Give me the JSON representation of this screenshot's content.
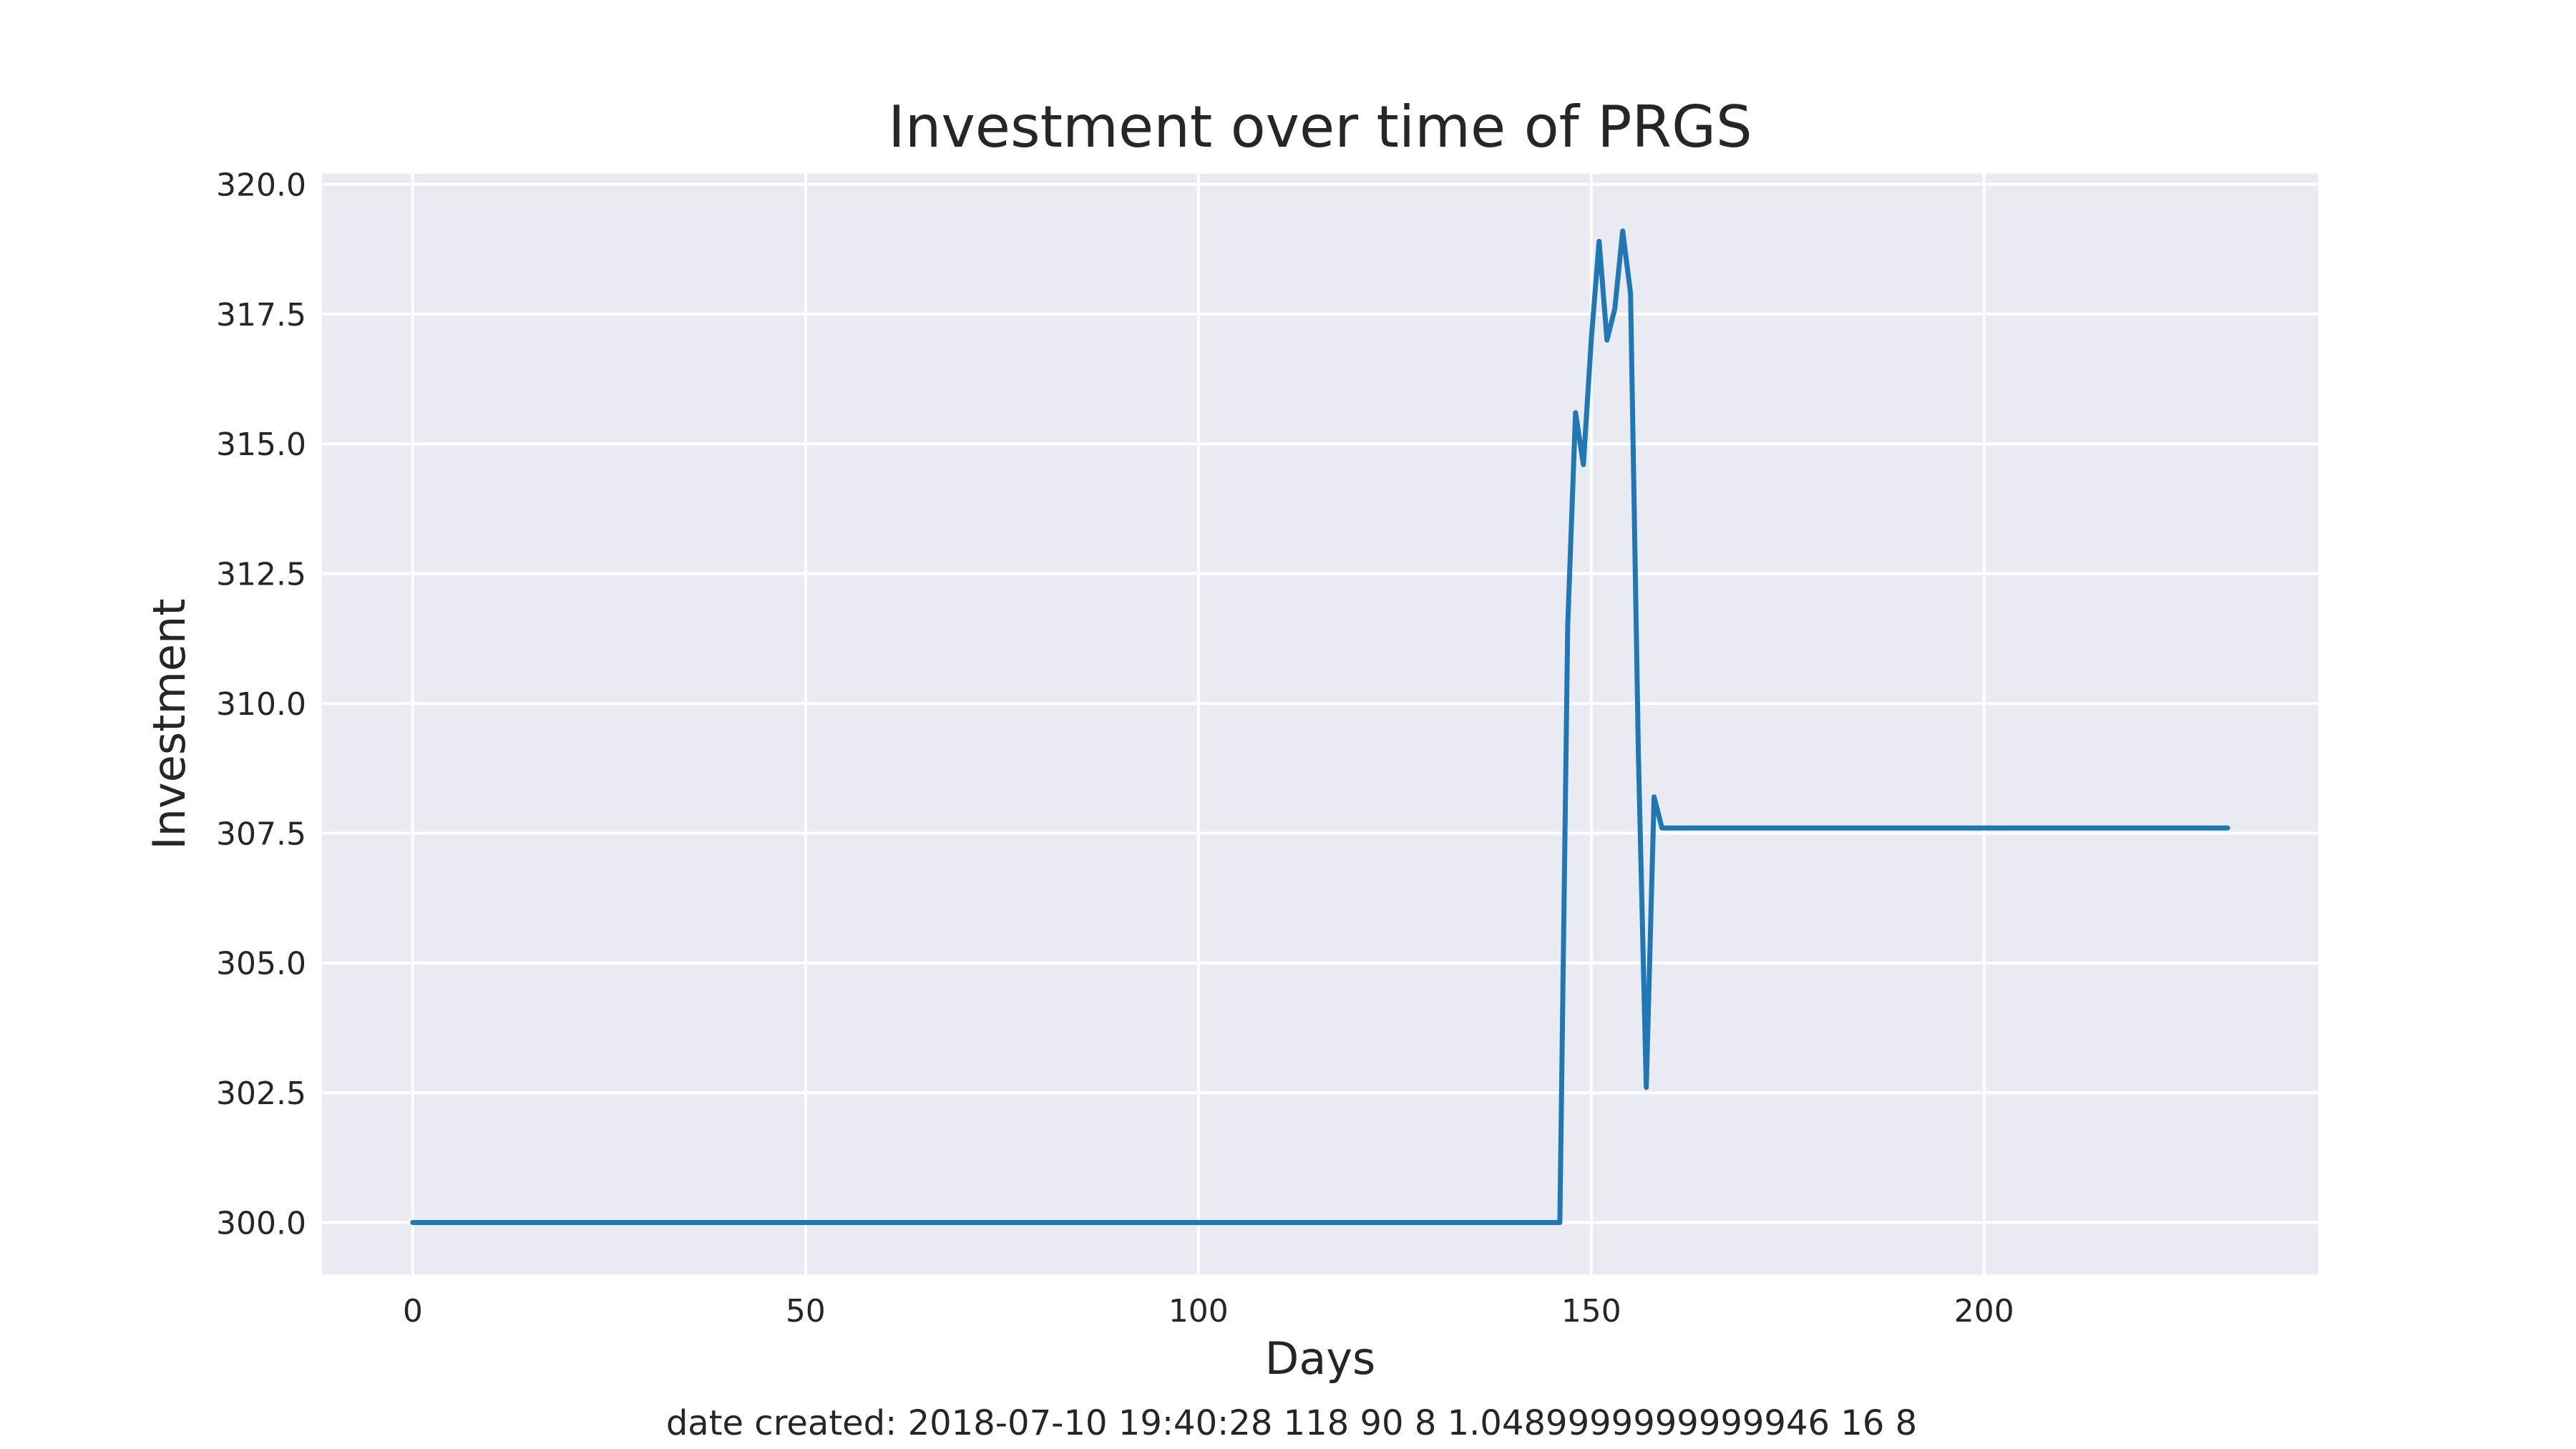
{
  "chart_data": {
    "type": "line",
    "title": "Investment over time of PRGS",
    "xlabel": "Days",
    "ylabel": "Investment",
    "xlim": [
      -11.55,
      242.55
    ],
    "ylim": [
      299.0,
      320.2
    ],
    "xticks": [
      0,
      50,
      100,
      150,
      200
    ],
    "xtick_labels": [
      "0",
      "50",
      "100",
      "150",
      "200"
    ],
    "yticks": [
      300.0,
      302.5,
      305.0,
      307.5,
      310.0,
      312.5,
      315.0,
      317.5,
      320.0
    ],
    "ytick_labels": [
      "300.0",
      "302.5",
      "305.0",
      "307.5",
      "310.0",
      "312.5",
      "315.0",
      "317.5",
      "320.0"
    ],
    "grid": true,
    "background": "#eaeaf2",
    "series": [
      {
        "color": "#1f77b4",
        "x": [
          0,
          146,
          147,
          148,
          149,
          150,
          151,
          152,
          153,
          154,
          155,
          156,
          157,
          158,
          159,
          160,
          231
        ],
        "y": [
          300.0,
          300.0,
          311.5,
          315.6,
          314.6,
          317.0,
          318.9,
          317.0,
          317.6,
          319.1,
          317.9,
          309.0,
          302.6,
          308.2,
          307.6,
          307.6,
          307.6
        ]
      }
    ]
  },
  "caption": "date created: 2018-07-10 19:40:28 118 90 8 1.0489999999999946 16 8"
}
